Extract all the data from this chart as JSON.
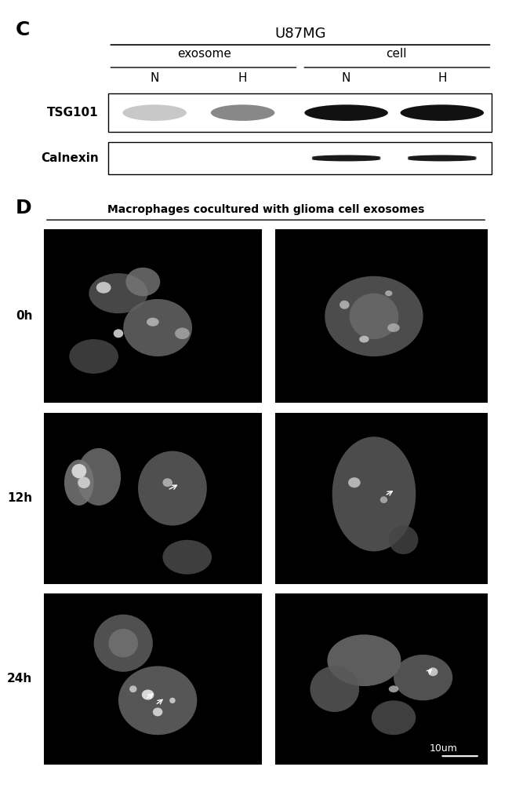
{
  "panel_C_label": "C",
  "panel_D_label": "D",
  "u87mg_title": "U87MG",
  "exosome_label": "exosome",
  "cell_label": "cell",
  "N_label": "N",
  "H_label": "H",
  "TSG101_label": "TSG101",
  "Calnexin_label": "Calnexin",
  "D_title": "Macrophages cocultured with glioma cell exosomes",
  "time_labels": [
    "0h",
    "12h",
    "24h"
  ],
  "scalebar_label": "10um",
  "bg_color": "#ffffff",
  "band_color_light": "#b0b0b0",
  "band_color_dark": "#202020",
  "band_color_medium": "#505050",
  "calnexin_band_color": "#303030"
}
